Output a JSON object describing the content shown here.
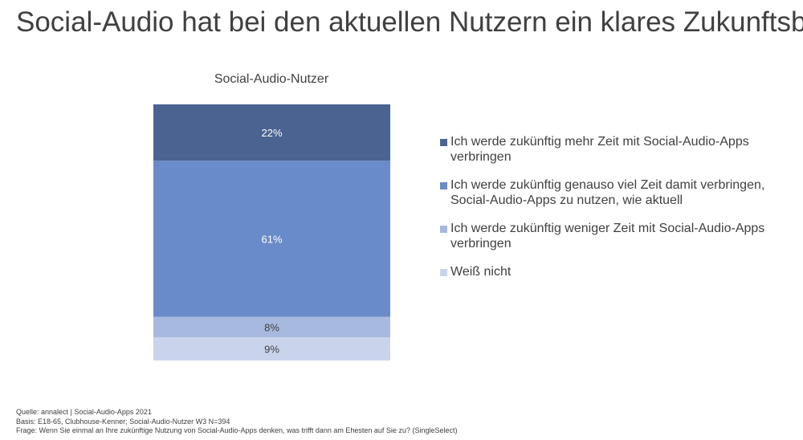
{
  "page": {
    "title": "Social-Audio hat bei den aktuellen Nutzern ein klares Zukunftsbild"
  },
  "chart_data": {
    "type": "bar",
    "stacked": true,
    "title": "Social-Audio-Nutzer",
    "categories": [
      "Social-Audio-Nutzer"
    ],
    "series": [
      {
        "name": "Ich werde zukünftig mehr Zeit mit Social-Audio-Apps verbringen",
        "values": [
          22
        ],
        "label": "22%",
        "color": "#4b6391"
      },
      {
        "name": "Ich werde zukünftig genauso viel Zeit damit verbringen, Social-Audio-Apps zu nutzen, wie aktuell",
        "values": [
          61
        ],
        "label": "61%",
        "color": "#6a8bc9"
      },
      {
        "name": "Ich werde zukünftig weniger Zeit mit Social-Audio-Apps verbringen",
        "values": [
          8
        ],
        "label": "8%",
        "color": "#a7b9df"
      },
      {
        "name": "Weiß nicht",
        "values": [
          9
        ],
        "label": "9%",
        "color": "#c9d4ec"
      }
    ],
    "ylim": [
      0,
      100
    ],
    "legend_position": "right",
    "grid": false
  },
  "footnote": {
    "source": "Quelle: annalect | Social-Audio-Apps 2021",
    "basis": "Basis: E18-65, Clubhouse-Kenner; Social-Audio-Nutzer W3 N=394",
    "question": "Frage: Wenn Sie einmal an Ihre zukünftige Nutzung von Social-Audio-Apps denken, was trifft dann am Ehesten auf Sie zu? (SingleSelect)"
  }
}
